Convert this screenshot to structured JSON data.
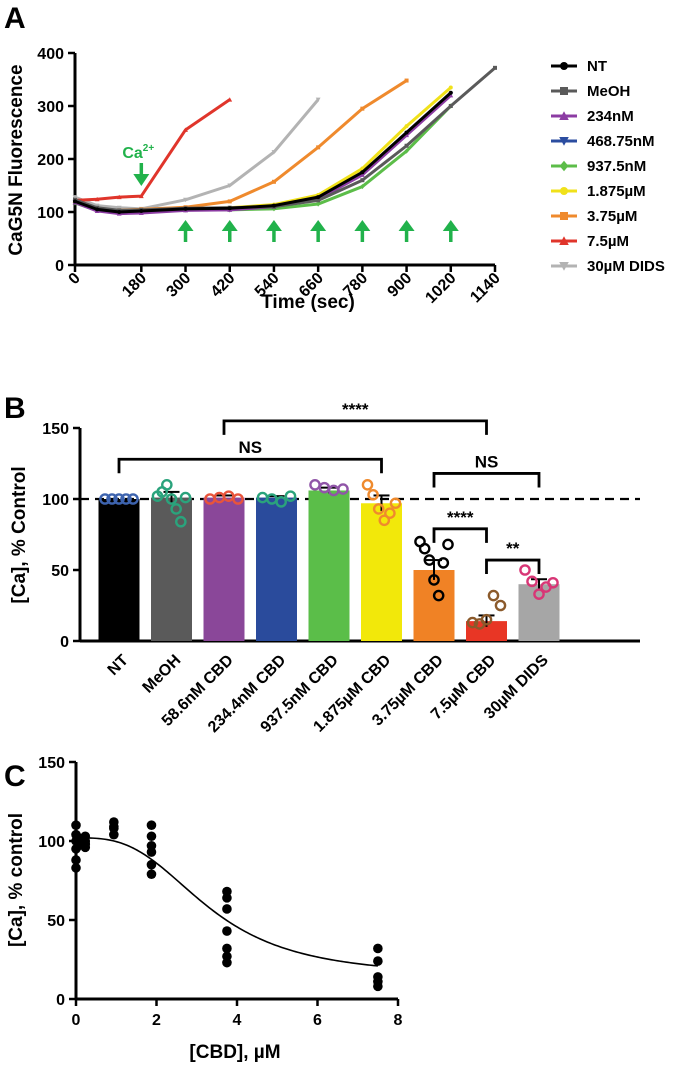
{
  "figure": {
    "panel_labels": [
      "A",
      "B",
      "C"
    ]
  },
  "chart_data": [
    {
      "type": "line",
      "panel": "A",
      "xlabel": "Time (sec)",
      "ylabel": "CaG5N Fluorescence",
      "xlim": [
        0,
        1140
      ],
      "ylim": [
        0,
        400
      ],
      "x_ticks": [
        0,
        180,
        300,
        420,
        540,
        660,
        780,
        900,
        1020,
        1140
      ],
      "y_ticks": [
        0,
        100,
        200,
        300,
        400
      ],
      "annotation": {
        "label": "Ca",
        "superscript": "2+",
        "color": "#21b24b",
        "x": 180
      },
      "arrows": {
        "color": "#21b24b",
        "x": [
          300,
          420,
          540,
          660,
          780,
          900,
          1020
        ]
      },
      "series": [
        {
          "name": "NT",
          "color": "#000000",
          "marker": "circle",
          "x": [
            0,
            60,
            120,
            180,
            300,
            420,
            540,
            660,
            780,
            900,
            1020
          ],
          "y": [
            120,
            105,
            100,
            102,
            106,
            107,
            112,
            128,
            175,
            250,
            325
          ]
        },
        {
          "name": "MeOH",
          "color": "#5a5a5a",
          "marker": "square",
          "x": [
            0,
            60,
            120,
            180,
            300,
            420,
            540,
            660,
            780,
            900,
            1020,
            1140
          ],
          "y": [
            123,
            108,
            103,
            104,
            107,
            108,
            110,
            122,
            160,
            225,
            300,
            372
          ]
        },
        {
          "name": "234nM",
          "color": "#8c3ca3",
          "marker": "triangle-up",
          "x": [
            0,
            60,
            120,
            180,
            300,
            420,
            540,
            660,
            780,
            900,
            1020
          ],
          "y": [
            118,
            102,
            97,
            98,
            103,
            104,
            110,
            125,
            170,
            245,
            320
          ]
        },
        {
          "name": "468.75nM",
          "color": "#2b4da0",
          "marker": "triangle-down",
          "x": [
            0,
            60,
            120,
            180,
            300,
            420,
            540,
            660,
            780,
            900,
            1020
          ],
          "y": [
            119,
            104,
            99,
            101,
            105,
            106,
            111,
            127,
            173,
            248,
            322
          ]
        },
        {
          "name": "937.5nM",
          "color": "#5cbd49",
          "marker": "diamond",
          "x": [
            0,
            60,
            120,
            180,
            300,
            420,
            540,
            660,
            780,
            900,
            1020
          ],
          "y": [
            117,
            103,
            100,
            102,
            104,
            104,
            106,
            115,
            148,
            215,
            300
          ]
        },
        {
          "name": "1.875µM",
          "color": "#f0e11a",
          "marker": "circle",
          "x": [
            0,
            60,
            120,
            180,
            300,
            420,
            540,
            660,
            780,
            900,
            1020
          ],
          "y": [
            121,
            104,
            101,
            103,
            106,
            108,
            114,
            132,
            182,
            262,
            335
          ]
        },
        {
          "name": "3.75µM",
          "color": "#ef8a2d",
          "marker": "square",
          "x": [
            0,
            60,
            120,
            180,
            300,
            420,
            540,
            660,
            780,
            900
          ],
          "y": [
            122,
            106,
            103,
            105,
            109,
            120,
            157,
            222,
            295,
            348
          ]
        },
        {
          "name": "7.5µM",
          "color": "#e0352b",
          "marker": "triangle-up",
          "x": [
            0,
            60,
            120,
            180,
            300,
            420
          ],
          "y": [
            122,
            124,
            128,
            130,
            255,
            312
          ]
        },
        {
          "name": "30µM DIDS",
          "color": "#b3b3b3",
          "marker": "triangle-down",
          "x": [
            0,
            60,
            120,
            180,
            300,
            420,
            540,
            660
          ],
          "y": [
            128,
            112,
            108,
            106,
            123,
            150,
            213,
            312
          ]
        }
      ]
    },
    {
      "type": "bar",
      "panel": "B",
      "ylabel": "[Ca], % Control",
      "ylim": [
        0,
        150
      ],
      "y_ticks": [
        0,
        50,
        100,
        150
      ],
      "reference_line": 100,
      "categories": [
        "NT",
        "MeOH",
        "58.6nM CBD",
        "234.4nM CBD",
        "937.5nM CBD",
        "1.875µM CBD",
        "3.75µM CBD",
        "7.5µM CBD",
        "30µM DIDS"
      ],
      "values": [
        100,
        101,
        101,
        101,
        106,
        97,
        50,
        14,
        40
      ],
      "errors": [
        0,
        4,
        1.5,
        1,
        2,
        5.5,
        7,
        4,
        3.5
      ],
      "bar_colors": [
        "#000000",
        "#5a5a5a",
        "#8a4799",
        "#2a4b9c",
        "#5bbe49",
        "#f2e80a",
        "#f08225",
        "#e83625",
        "#a6a6a6"
      ],
      "point_colors": [
        "#3d63ae",
        "#2aa37c",
        "#e8543b",
        "#2aa37c",
        "#9055a8",
        "#ef8a2d",
        "#000000",
        "#8b5a2b",
        "#d83676"
      ],
      "points": [
        [
          100,
          100,
          100,
          100,
          100
        ],
        [
          102,
          105,
          110,
          100,
          93,
          84,
          101
        ],
        [
          100,
          101,
          102,
          100
        ],
        [
          101,
          100,
          98,
          102
        ],
        [
          110,
          108,
          106,
          107
        ],
        [
          110,
          103,
          93,
          85,
          90,
          97
        ],
        [
          70,
          65,
          57,
          43,
          32,
          55,
          68
        ],
        [
          13,
          12,
          15,
          32,
          25
        ],
        [
          50,
          42,
          33,
          38,
          41
        ]
      ],
      "significance": [
        {
          "from": 0,
          "to": 5,
          "label": "NS",
          "y": 128
        },
        {
          "from": 2,
          "to": 7,
          "label": "****",
          "y": 155
        },
        {
          "from": 6,
          "to": 8,
          "label": "NS",
          "y": 118
        },
        {
          "from": 6,
          "to": 7,
          "label": "****",
          "y": 79
        },
        {
          "from": 7,
          "to": 8,
          "label": "**",
          "y": 57
        }
      ]
    },
    {
      "type": "scatter",
      "panel": "C",
      "xlabel": "[CBD], µM",
      "ylabel": "[Ca], % control",
      "xlim": [
        0,
        8
      ],
      "ylim": [
        0,
        150
      ],
      "x_ticks": [
        0,
        2,
        4,
        6,
        8
      ],
      "y_ticks": [
        0,
        50,
        100,
        150
      ],
      "points_x": [
        0,
        0,
        0,
        0,
        0,
        0,
        0.06,
        0.06,
        0.06,
        0.06,
        0.23,
        0.23,
        0.23,
        0.23,
        0.94,
        0.94,
        0.94,
        0.94,
        1.875,
        1.875,
        1.875,
        1.875,
        1.875,
        1.875,
        3.75,
        3.75,
        3.75,
        3.75,
        3.75,
        3.75,
        3.75,
        7.5,
        7.5,
        7.5,
        7.5,
        7.5
      ],
      "points_y": [
        110,
        104,
        100,
        95,
        88,
        83,
        101,
        99,
        97,
        102,
        100,
        103,
        98,
        96,
        112,
        108,
        104,
        109,
        110,
        103,
        97,
        93,
        85,
        79,
        68,
        64,
        57,
        43,
        32,
        27,
        23,
        32,
        24,
        14,
        11,
        8
      ],
      "fit": {
        "model": "sigmoidal dose-response",
        "top": 102,
        "bottom": 14,
        "ic50": 3.3,
        "hill": 3
      }
    }
  ]
}
